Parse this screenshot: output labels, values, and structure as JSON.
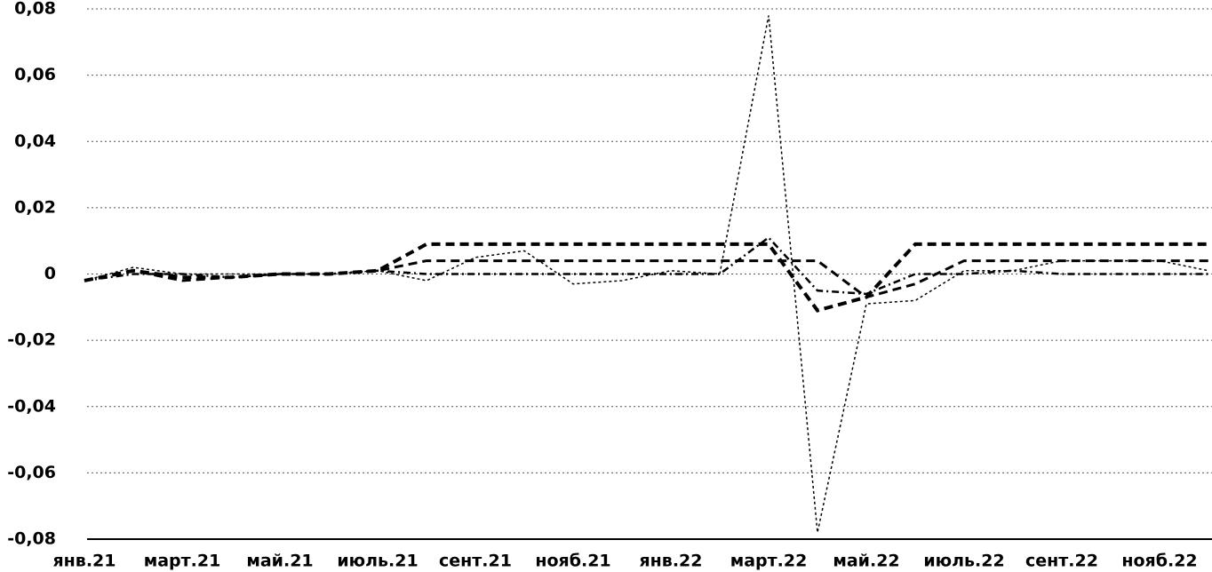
{
  "chart_data": {
    "type": "line",
    "categories": [
      "янв.21",
      null,
      "март.21",
      null,
      "май.21",
      null,
      "июль.21",
      null,
      "сент.21",
      null,
      "нояб.21",
      null,
      "янв.22",
      null,
      "март.22",
      null,
      "май.22",
      null,
      "июль.22",
      null,
      "сент.22",
      null,
      "нояб.22",
      null
    ],
    "series": [
      {
        "color": "#000000",
        "style": "dashed-thick",
        "values": [
          -0.002,
          0.001,
          -0.001,
          -0.001,
          0,
          0,
          0.001,
          0.009,
          0.009,
          0.009,
          0.009,
          0.009,
          0.009,
          0.009,
          0.009,
          -0.011,
          -0.007,
          0.009,
          0.009,
          0.009,
          0.009,
          0.009,
          0.009,
          0.009
        ]
      },
      {
        "color": "#000000",
        "style": "dashed",
        "values": [
          -0.002,
          0.001,
          -0.002,
          -0.001,
          0,
          0,
          0.001,
          0.004,
          0.004,
          0.004,
          0.004,
          0.004,
          0.004,
          0.004,
          0.004,
          0.004,
          -0.007,
          -0.003,
          0.004,
          0.004,
          0.004,
          0.004,
          0.004,
          0.004
        ]
      },
      {
        "color": "#000000",
        "style": "dotted",
        "values": [
          -0.002,
          0.002,
          0,
          0,
          0,
          0,
          0.001,
          -0.002,
          0.005,
          0.007,
          -0.003,
          -0.002,
          0.001,
          0,
          0.078,
          -0.078,
          -0.009,
          -0.008,
          0.001,
          0.001,
          0.004,
          0.004,
          0.004,
          0.001
        ]
      },
      {
        "color": "#000000",
        "style": "dashdot",
        "values": [
          -0.002,
          0,
          0,
          -0.001,
          0,
          0,
          0.001,
          0,
          0,
          0,
          0,
          0,
          0,
          0,
          0.011,
          -0.005,
          -0.006,
          0,
          0,
          0.001,
          0,
          0,
          0,
          0
        ]
      }
    ],
    "ylim": [
      -0.08,
      0.08
    ],
    "yticks": [
      {
        "value": -0.08,
        "label": "-0,08"
      },
      {
        "value": -0.06,
        "label": "-0,06"
      },
      {
        "value": -0.04,
        "label": "-0,04"
      },
      {
        "value": -0.02,
        "label": "-0,02"
      },
      0,
      {
        "value": 0.02,
        "label": "0,02"
      },
      {
        "value": 0.04,
        "label": "0,04"
      },
      {
        "value": 0.06,
        "label": "0,06"
      },
      {
        "value": 0.08,
        "label": "0,08"
      }
    ],
    "grid": true
  }
}
